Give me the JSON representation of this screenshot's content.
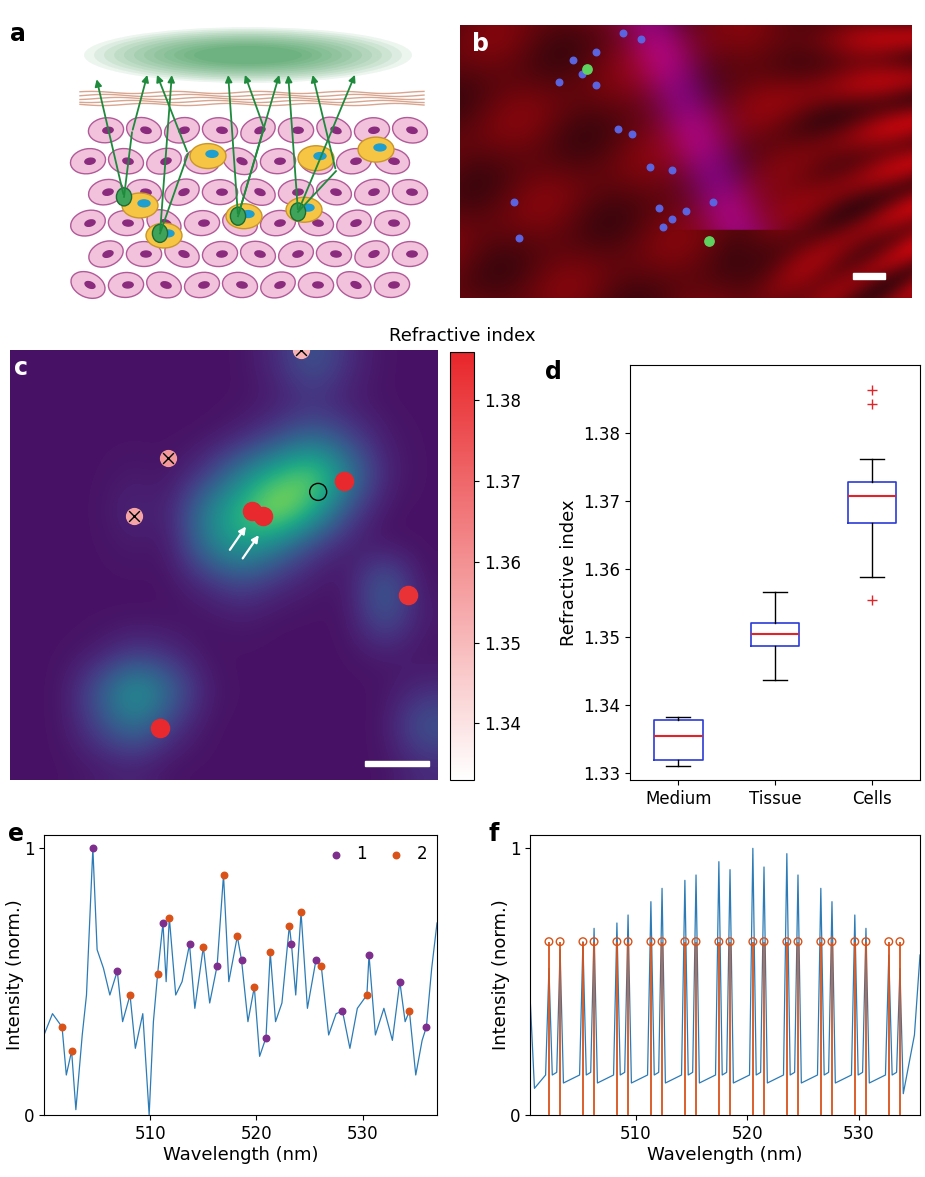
{
  "chart_data": [
    {
      "type": "diagram",
      "panel_label": "a"
    },
    {
      "type": "image",
      "panel_label": "b"
    },
    {
      "type": "heatmap",
      "panel_label": "c",
      "tick_labels": false,
      "cells": [
        [
          1.335,
          1.335,
          1.335,
          1.335,
          1.335,
          1.335,
          1.335,
          1.338,
          1.345,
          1.338,
          1.335,
          1.335
        ],
        [
          1.335,
          1.335,
          1.335,
          1.335,
          1.335,
          1.335,
          1.335,
          1.336,
          1.338,
          1.336,
          1.335,
          1.335
        ],
        [
          1.335,
          1.335,
          1.335,
          1.335,
          1.335,
          1.335,
          1.337,
          1.342,
          1.348,
          1.342,
          1.336,
          1.335
        ],
        [
          1.335,
          1.335,
          1.335,
          1.336,
          1.335,
          1.34,
          1.352,
          1.362,
          1.368,
          1.352,
          1.337,
          1.335
        ],
        [
          1.335,
          1.335,
          1.335,
          1.338,
          1.336,
          1.352,
          1.362,
          1.372,
          1.36,
          1.342,
          1.335,
          1.335
        ],
        [
          1.335,
          1.335,
          1.335,
          1.336,
          1.335,
          1.35,
          1.358,
          1.35,
          1.34,
          1.336,
          1.335,
          1.335
        ],
        [
          1.335,
          1.335,
          1.335,
          1.335,
          1.335,
          1.338,
          1.342,
          1.338,
          1.336,
          1.335,
          1.348,
          1.335
        ],
        [
          1.335,
          1.335,
          1.335,
          1.335,
          1.335,
          1.335,
          1.336,
          1.335,
          1.335,
          1.335,
          1.345,
          1.336
        ],
        [
          1.335,
          1.335,
          1.336,
          1.34,
          1.338,
          1.335,
          1.335,
          1.335,
          1.335,
          1.335,
          1.336,
          1.335
        ],
        [
          1.335,
          1.335,
          1.345,
          1.358,
          1.348,
          1.336,
          1.335,
          1.335,
          1.335,
          1.335,
          1.335,
          1.338
        ],
        [
          1.335,
          1.335,
          1.342,
          1.35,
          1.34,
          1.335,
          1.335,
          1.335,
          1.335,
          1.335,
          1.335,
          1.345
        ],
        [
          1.335,
          1.335,
          1.336,
          1.337,
          1.335,
          1.335,
          1.335,
          1.335,
          1.335,
          1.335,
          1.335,
          1.338
        ]
      ],
      "cell_range": [
        1.333,
        1.375
      ],
      "points": {
        "x": [
          0.565,
          0.59,
          0.78,
          0.93,
          0.35,
          0.72,
          0.37,
          0.29,
          0.68
        ],
        "y": [
          0.375,
          0.385,
          0.305,
          0.57,
          0.88,
          0.33,
          0.25,
          0.385,
          0.0
        ],
        "values": [
          1.385,
          1.385,
          1.385,
          1.383,
          1.385,
          null,
          1.358,
          1.355,
          1.352
        ],
        "marker": [
          "circle",
          "circle",
          "circle",
          "circle",
          "circle",
          "open",
          "cross",
          "cross",
          "cross"
        ]
      },
      "colorbar": {
        "label": "Refractive index",
        "range": [
          1.333,
          1.386
        ],
        "ticks": [
          1.34,
          1.35,
          1.36,
          1.37,
          1.38
        ],
        "color": "#e8262a"
      }
    },
    {
      "type": "box",
      "panel_label": "d",
      "categories": [
        "Medium",
        "Tissue",
        "Cells"
      ],
      "ylabel": "Refractive index",
      "ylim": [
        1.329,
        1.39
      ],
      "yticks": [
        1.33,
        1.34,
        1.35,
        1.36,
        1.37,
        1.38
      ],
      "color": "#2b3bd6",
      "boxes": [
        {
          "whislo": 1.331,
          "q1": 1.332,
          "med": 1.3355,
          "q3": 1.3378,
          "whishi": 1.3382,
          "fliers": []
        },
        {
          "whislo": 1.3437,
          "q1": 1.3487,
          "med": 1.3505,
          "q3": 1.3521,
          "whishi": 1.3566,
          "fliers": []
        },
        {
          "whislo": 1.3588,
          "q1": 1.3668,
          "med": 1.3707,
          "q3": 1.3728,
          "whishi": 1.3762,
          "fliers": [
            1.3555,
            1.3843,
            1.3863
          ]
        }
      ]
    },
    {
      "type": "line",
      "panel_label": "e",
      "xlabel": "Wavelength (nm)",
      "ylabel": "Intensity (norm.)",
      "xlim": [
        500,
        537
      ],
      "ylim": [
        0,
        1.05
      ],
      "xticks": [
        510,
        520,
        530
      ],
      "yticks": [
        0,
        1
      ],
      "color": "#2c7bb6",
      "legend": "upper right",
      "x": [
        500.0,
        500.8,
        501.7,
        502.1,
        502.6,
        503.0,
        503.6,
        504.0,
        504.6,
        505.0,
        505.6,
        506.2,
        506.9,
        507.4,
        508.1,
        508.6,
        509.3,
        509.9,
        510.3,
        510.7,
        511.2,
        511.5,
        511.8,
        512.4,
        513.0,
        513.7,
        514.2,
        515.0,
        515.6,
        516.3,
        516.9,
        517.4,
        518.2,
        518.6,
        519.2,
        519.8,
        520.3,
        520.9,
        521.3,
        521.8,
        522.4,
        523.1,
        523.3,
        523.7,
        524.2,
        524.8,
        525.6,
        526.1,
        526.8,
        527.5,
        528.1,
        528.8,
        529.5,
        530.4,
        530.6,
        531.2,
        532.0,
        532.8,
        533.5,
        534.0,
        534.4,
        535.0,
        535.6,
        536.0,
        536.5,
        537.0
      ],
      "values": [
        0.3,
        0.38,
        0.33,
        0.15,
        0.24,
        0.02,
        0.3,
        0.45,
        1.0,
        0.62,
        0.55,
        0.45,
        0.54,
        0.35,
        0.45,
        0.25,
        0.38,
        0.0,
        0.35,
        0.53,
        0.72,
        0.5,
        0.74,
        0.45,
        0.5,
        0.64,
        0.4,
        0.63,
        0.42,
        0.56,
        0.9,
        0.5,
        0.67,
        0.58,
        0.35,
        0.48,
        0.22,
        0.29,
        0.61,
        0.35,
        0.42,
        0.71,
        0.64,
        0.45,
        0.76,
        0.4,
        0.58,
        0.56,
        0.3,
        0.38,
        0.39,
        0.25,
        0.4,
        0.45,
        0.6,
        0.3,
        0.4,
        0.28,
        0.5,
        0.35,
        0.39,
        0.15,
        0.28,
        0.33,
        0.55,
        0.72
      ],
      "series": [
        {
          "name": "1",
          "color": "#7e2f8e",
          "type": "scatter",
          "marker": "circle",
          "x": [
            504.6,
            506.9,
            511.2,
            513.7,
            516.3,
            518.6,
            520.9,
            523.3,
            525.6,
            528.1,
            530.6,
            533.5,
            536.0
          ],
          "values": [
            1.0,
            0.54,
            0.72,
            0.64,
            0.56,
            0.58,
            0.29,
            0.64,
            0.58,
            0.39,
            0.6,
            0.5,
            0.33
          ]
        },
        {
          "name": "2",
          "color": "#d95319",
          "type": "scatter",
          "marker": "circle",
          "x": [
            501.7,
            502.6,
            508.1,
            510.7,
            511.8,
            515.0,
            516.9,
            518.2,
            519.8,
            521.3,
            523.1,
            524.2,
            526.1,
            530.4,
            534.4
          ],
          "values": [
            0.33,
            0.24,
            0.45,
            0.53,
            0.74,
            0.63,
            0.9,
            0.67,
            0.48,
            0.61,
            0.71,
            0.76,
            0.56,
            0.45,
            0.39
          ]
        }
      ]
    },
    {
      "type": "line",
      "panel_label": "f",
      "xlabel": "Wavelength (nm)",
      "ylabel": "Intensity (norm.)",
      "xlim": [
        500.5,
        535.5
      ],
      "ylim": [
        0,
        1.05
      ],
      "xticks": [
        510,
        520,
        530
      ],
      "yticks": [
        0,
        1
      ],
      "color": "#2c7bb6",
      "x": [
        500.5,
        500.9,
        501.9,
        502.2,
        502.5,
        502.9,
        503.2,
        503.5,
        504.95,
        505.25,
        505.55,
        505.95,
        506.25,
        506.55,
        508.0,
        508.3,
        508.6,
        509.0,
        509.3,
        509.6,
        511.05,
        511.35,
        511.65,
        512.05,
        512.35,
        512.65,
        514.1,
        514.4,
        514.7,
        515.1,
        515.4,
        515.7,
        517.15,
        517.45,
        517.75,
        518.15,
        518.45,
        518.75,
        520.2,
        520.5,
        520.8,
        521.2,
        521.5,
        521.8,
        523.25,
        523.55,
        523.85,
        524.25,
        524.55,
        524.85,
        526.3,
        526.6,
        526.9,
        527.3,
        527.6,
        527.9,
        529.35,
        529.65,
        529.95,
        530.35,
        530.65,
        530.95,
        532.4,
        532.7,
        533.0,
        533.4,
        533.7,
        534.0,
        535.0,
        535.5
      ],
      "values": [
        0.45,
        0.1,
        0.15,
        0.55,
        0.15,
        0.16,
        0.62,
        0.12,
        0.15,
        0.65,
        0.15,
        0.16,
        0.7,
        0.12,
        0.15,
        0.72,
        0.15,
        0.16,
        0.75,
        0.12,
        0.15,
        0.8,
        0.15,
        0.16,
        0.85,
        0.12,
        0.15,
        0.88,
        0.15,
        0.16,
        0.9,
        0.12,
        0.15,
        0.95,
        0.15,
        0.16,
        0.92,
        0.12,
        0.15,
        1.0,
        0.15,
        0.16,
        0.93,
        0.12,
        0.15,
        0.98,
        0.15,
        0.16,
        0.9,
        0.12,
        0.15,
        0.85,
        0.15,
        0.16,
        0.8,
        0.12,
        0.15,
        0.75,
        0.15,
        0.16,
        0.7,
        0.12,
        0.15,
        0.6,
        0.15,
        0.16,
        0.55,
        0.08,
        0.3,
        0.6
      ],
      "stems": {
        "x": [
          502.2,
          503.2,
          505.25,
          506.25,
          508.3,
          509.3,
          511.35,
          512.35,
          514.4,
          515.4,
          517.45,
          518.45,
          520.5,
          521.5,
          523.55,
          524.55,
          526.6,
          527.6,
          529.65,
          530.65,
          532.7,
          533.7
        ],
        "level": 0.65,
        "color": "#d95319",
        "marker": "open"
      }
    }
  ]
}
